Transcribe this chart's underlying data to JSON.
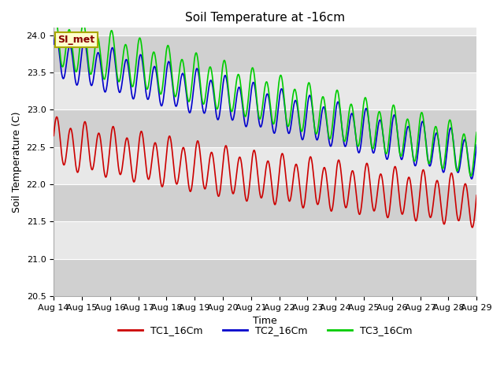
{
  "title": "Soil Temperature at -16cm",
  "xlabel": "Time",
  "ylabel": "Soil Temperature (C)",
  "ylim": [
    20.5,
    24.1
  ],
  "ytick_values": [
    20.5,
    21.0,
    21.5,
    22.0,
    22.5,
    23.0,
    23.5,
    24.0
  ],
  "x_tick_labels": [
    "Aug 14",
    "Aug 15",
    "Aug 16",
    "Aug 17",
    "Aug 18",
    "Aug 19",
    "Aug 20",
    "Aug 21",
    "Aug 22",
    "Aug 23",
    "Aug 24",
    "Aug 25",
    "Aug 26",
    "Aug 27",
    "Aug 28",
    "Aug 29"
  ],
  "color_tc1": "#cc0000",
  "color_tc2": "#0000cc",
  "color_tc3": "#00cc00",
  "legend_labels": [
    "TC1_16Cm",
    "TC2_16Cm",
    "TC3_16Cm"
  ],
  "annotation_text": "SI_met",
  "annotation_bg": "#ffffcc",
  "annotation_border": "#aaa800",
  "annotation_text_color": "#880000",
  "bg_color": "#ffffff",
  "plot_bg_color": "#e8e8e8",
  "band_color": "#d0d0d0",
  "grid_color": "#ffffff",
  "linewidth": 1.2,
  "title_fontsize": 11,
  "label_fontsize": 9,
  "tick_fontsize": 8
}
